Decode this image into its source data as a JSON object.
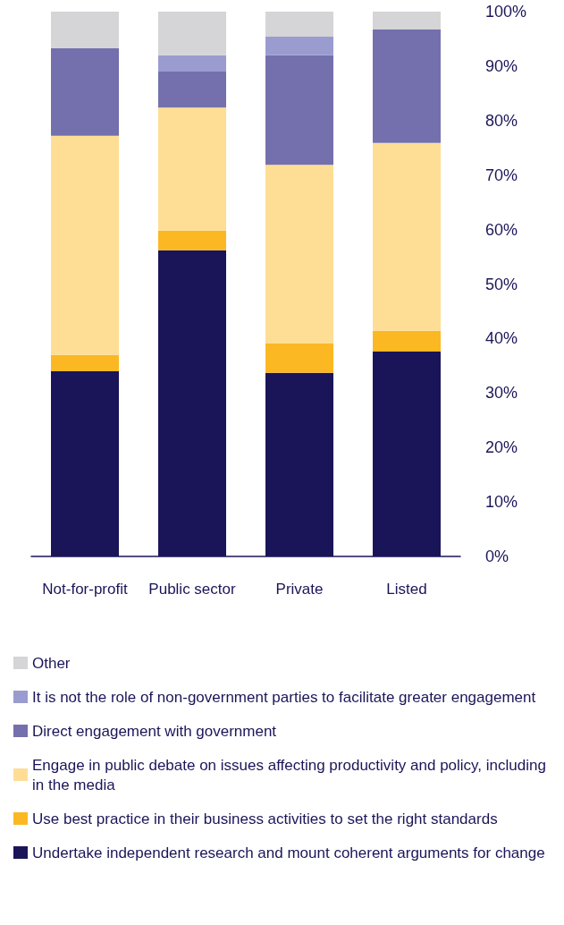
{
  "chart_data": {
    "type": "bar",
    "stacked": true,
    "categories": [
      "Not-for-profit",
      "Public sector",
      "Private",
      "Listed"
    ],
    "series": [
      {
        "name": "Undertake independent research and mount coherent arguments for change",
        "color": "#1a1558",
        "values": [
          34.0,
          56.2,
          33.7,
          37.6
        ]
      },
      {
        "name": "Use best practice in their business activities to set the right standards",
        "color": "#fbb823",
        "values": [
          3.0,
          3.6,
          5.4,
          3.8
        ]
      },
      {
        "name": "Engage in public debate on issues affecting productivity and policy, including in the media",
        "color": "#fede95",
        "values": [
          40.2,
          22.6,
          32.8,
          34.5
        ]
      },
      {
        "name": "Direct engagement with government",
        "color": "#7470ad",
        "values": [
          16.1,
          6.6,
          20.1,
          20.8
        ]
      },
      {
        "name": "It is not the role of non-government parties to facilitate greater engagement",
        "color": "#9a9ccf",
        "values": [
          0,
          3.0,
          3.4,
          0
        ]
      },
      {
        "name": "Other",
        "color": "#d5d5d7",
        "values": [
          6.7,
          8.0,
          4.6,
          3.3
        ]
      }
    ],
    "ylim": [
      0,
      100
    ],
    "yticks": [
      {
        "value": 0,
        "label": "0%"
      },
      {
        "value": 10,
        "label": "10%"
      },
      {
        "value": 20,
        "label": "20%"
      },
      {
        "value": 30,
        "label": "30%"
      },
      {
        "value": 40,
        "label": "40%"
      },
      {
        "value": 50,
        "label": "50%"
      },
      {
        "value": 60,
        "label": "60%"
      },
      {
        "value": 70,
        "label": "70%"
      },
      {
        "value": 80,
        "label": "80%"
      },
      {
        "value": 90,
        "label": "90%"
      },
      {
        "value": 100,
        "label": "100%"
      }
    ],
    "grid": false,
    "legend": "bottom"
  }
}
